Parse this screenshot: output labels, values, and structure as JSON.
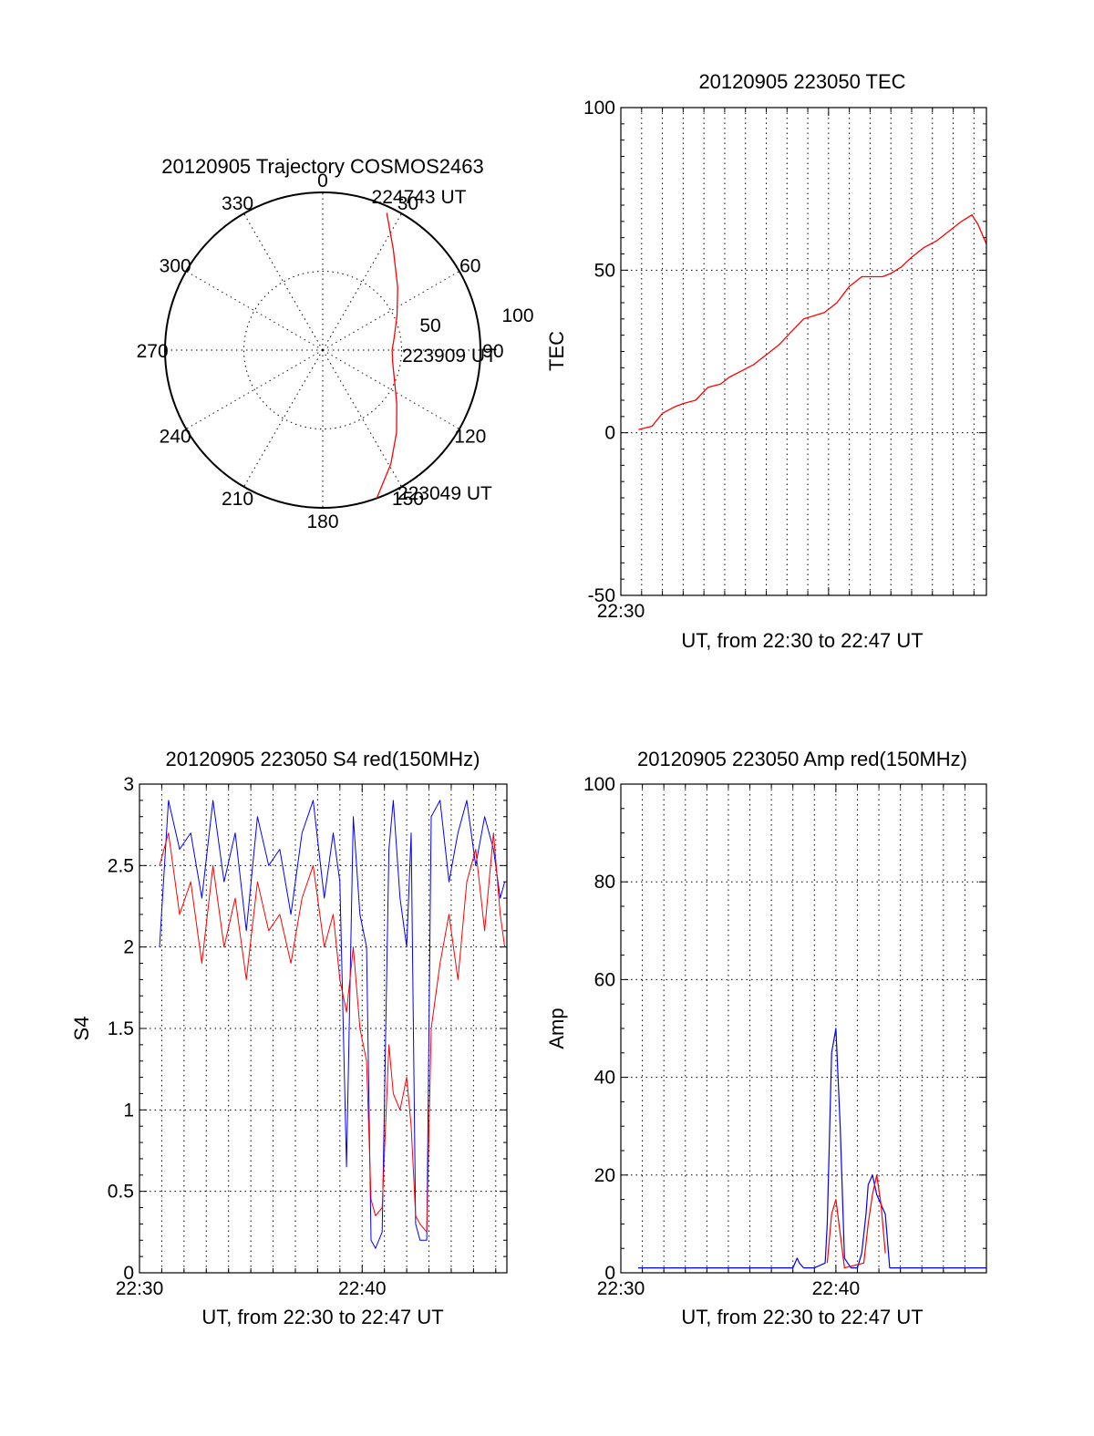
{
  "chart_data": [
    {
      "type": "polar",
      "title": "20120905 Trajectory COSMOS2463",
      "angle_labels": [
        "0",
        "30",
        "60",
        "90",
        "120",
        "150",
        "180",
        "210",
        "240",
        "270",
        "300",
        "330"
      ],
      "radial_labels": [
        "50",
        "100"
      ],
      "rlim": [
        0,
        100
      ],
      "series": [
        {
          "color": "#ff0000",
          "azimuth": [
            160,
            149,
            138,
            126,
            112,
            100,
            90,
            80,
            65,
            50,
            35,
            25
          ],
          "radius": [
            100,
            84,
            70,
            58,
            49,
            45,
            44,
            46,
            52,
            62,
            78,
            96
          ]
        }
      ],
      "annotations": [
        {
          "text": "224743 UT",
          "azimuth": 20,
          "radius": 104
        },
        {
          "text": "223909 UT",
          "azimuth": 93,
          "radius": 55
        },
        {
          "text": "223049 UT",
          "azimuth": 150,
          "radius": 104
        }
      ]
    },
    {
      "type": "line",
      "title": "20120905 223050 TEC",
      "xlabel": "UT, from 22:30 to 22:47 UT",
      "ylabel": "TEC",
      "xlim": [
        0,
        17.6
      ],
      "ylim": [
        -50,
        100
      ],
      "yticks": [
        "-50",
        "0",
        "50",
        "100"
      ],
      "xtick_labels": [
        {
          "x": 0,
          "label": "22:30"
        }
      ],
      "grid": true,
      "series": [
        {
          "color": "#ff0000",
          "x": [
            0.85,
            1.5,
            2.0,
            2.6,
            3.0,
            3.6,
            4.2,
            4.8,
            5.2,
            5.8,
            6.4,
            7.0,
            7.6,
            8.2,
            8.8,
            9.3,
            9.8,
            10.4,
            11.0,
            11.6,
            12.0,
            12.6,
            13.0,
            13.5,
            14.0,
            14.6,
            15.2,
            15.8,
            16.4,
            16.9,
            17.2,
            17.6
          ],
          "y": [
            1,
            2,
            6,
            8,
            9,
            10,
            14,
            15,
            17,
            19,
            21,
            24,
            27,
            31,
            35,
            36,
            37,
            40,
            45,
            48,
            48,
            48,
            49,
            51,
            54,
            57,
            59,
            62,
            65,
            67,
            64,
            58
          ]
        }
      ]
    },
    {
      "type": "line",
      "title": "20120905 223050 S4 red(150MHz)",
      "xlabel": "UT, from 22:30 to 22:47 UT",
      "ylabel": "S4",
      "xlim": [
        0,
        16.5
      ],
      "ylim": [
        0,
        3
      ],
      "yticks": [
        "0",
        "0.5",
        "1",
        "1.5",
        "2",
        "2.5",
        "3"
      ],
      "xtick_labels": [
        {
          "x": 0,
          "label": "22:30"
        },
        {
          "x": 10,
          "label": "22:40"
        }
      ],
      "grid": true,
      "series": [
        {
          "color": "#0000ff",
          "x": [
            0.9,
            1.3,
            1.8,
            2.3,
            2.8,
            3.3,
            3.8,
            4.3,
            4.8,
            5.3,
            5.8,
            6.3,
            6.8,
            7.3,
            7.8,
            8.3,
            8.7,
            9.0,
            9.3,
            9.6,
            9.9,
            10.2,
            10.4,
            10.6,
            10.9,
            11.2,
            11.4,
            11.7,
            12.0,
            12.2,
            12.4,
            12.6,
            12.9,
            13.1,
            13.5,
            13.9,
            14.3,
            14.7,
            15.1,
            15.5,
            15.9,
            16.2,
            16.4
          ],
          "y": [
            2.0,
            2.9,
            2.6,
            2.7,
            2.3,
            2.9,
            2.4,
            2.7,
            2.1,
            2.8,
            2.5,
            2.6,
            2.2,
            2.7,
            2.9,
            2.3,
            2.7,
            2.4,
            0.65,
            2.8,
            2.2,
            2.0,
            0.2,
            0.15,
            0.25,
            2.6,
            2.9,
            2.3,
            2.0,
            2.7,
            0.3,
            0.2,
            0.2,
            2.8,
            2.9,
            2.4,
            2.7,
            2.9,
            2.5,
            2.8,
            2.6,
            2.3,
            2.4
          ]
        },
        {
          "color": "#ff0000",
          "x": [
            0.9,
            1.3,
            1.8,
            2.3,
            2.8,
            3.3,
            3.8,
            4.3,
            4.8,
            5.3,
            5.8,
            6.3,
            6.8,
            7.3,
            7.8,
            8.3,
            8.7,
            9.0,
            9.3,
            9.6,
            9.9,
            10.2,
            10.4,
            10.6,
            10.9,
            11.2,
            11.4,
            11.7,
            12.0,
            12.2,
            12.4,
            12.6,
            12.9,
            13.1,
            13.5,
            13.9,
            14.3,
            14.7,
            15.1,
            15.5,
            15.9,
            16.2,
            16.4
          ],
          "y": [
            2.5,
            2.7,
            2.2,
            2.4,
            1.9,
            2.5,
            2.0,
            2.3,
            1.8,
            2.4,
            2.1,
            2.2,
            1.9,
            2.3,
            2.5,
            2.0,
            2.2,
            1.8,
            1.6,
            2.0,
            1.5,
            1.3,
            0.45,
            0.35,
            0.4,
            1.4,
            1.1,
            1.0,
            1.2,
            0.9,
            0.35,
            0.3,
            0.25,
            1.5,
            1.9,
            2.2,
            1.8,
            2.4,
            2.6,
            2.1,
            2.7,
            2.2,
            2.0
          ]
        }
      ]
    },
    {
      "type": "line",
      "title": "20120905 223050 Amp red(150MHz)",
      "xlabel": "UT, from 22:30 to 22:47 UT",
      "ylabel": "Amp",
      "xlim": [
        0,
        17.0
      ],
      "ylim": [
        0,
        100
      ],
      "yticks": [
        "0",
        "20",
        "40",
        "60",
        "80",
        "100"
      ],
      "xtick_labels": [
        {
          "x": 0,
          "label": "22:30"
        },
        {
          "x": 10,
          "label": "22:40"
        }
      ],
      "grid": true,
      "series": [
        {
          "color": "#0000ff",
          "x": [
            0.8,
            2.0,
            4.0,
            6.0,
            8.0,
            8.2,
            8.3,
            8.5,
            9.0,
            9.5,
            9.6,
            9.8,
            10.0,
            10.2,
            10.4,
            10.7,
            11.0,
            11.2,
            11.4,
            11.5,
            11.7,
            11.9,
            12.1,
            12.3,
            12.5,
            13.0,
            14.0,
            15.0,
            16.0,
            17.0
          ],
          "y": [
            1,
            1,
            1,
            1,
            1,
            3,
            2,
            1,
            1,
            2,
            10,
            45,
            50,
            30,
            3,
            1,
            1,
            4,
            12,
            18,
            20,
            16,
            14,
            12,
            1,
            1,
            1,
            1,
            1,
            1
          ]
        },
        {
          "color": "#ff0000",
          "x": [
            9.6,
            9.8,
            10.0,
            10.2,
            10.4,
            11.3,
            11.5,
            11.7,
            11.9,
            12.1,
            12.3
          ],
          "y": [
            2,
            12,
            15,
            8,
            1,
            2,
            10,
            16,
            20,
            14,
            4
          ]
        }
      ]
    }
  ]
}
